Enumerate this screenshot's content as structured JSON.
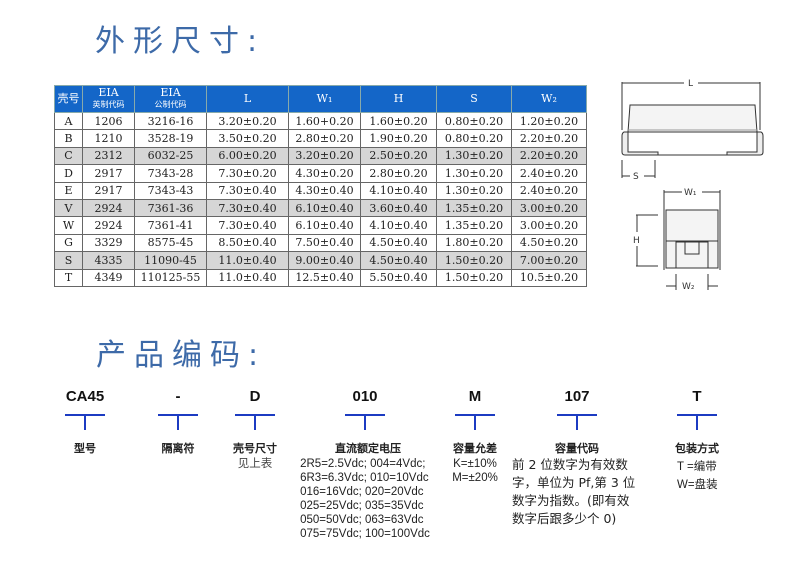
{
  "sections": {
    "dimensions_title": "外形尺寸:",
    "part_number_title": "产品编码:"
  },
  "table": {
    "headers": [
      {
        "main": "壳号",
        "sub": ""
      },
      {
        "main": "EIA",
        "sub": "英制代码"
      },
      {
        "main": "EIA",
        "sub": "公制代码"
      },
      {
        "main": "L",
        "sub": ""
      },
      {
        "main": "W₁",
        "sub": ""
      },
      {
        "main": "H",
        "sub": ""
      },
      {
        "main": "S",
        "sub": ""
      },
      {
        "main": "W₂",
        "sub": ""
      }
    ],
    "rows": [
      {
        "shaded": false,
        "cells": [
          "A",
          "1206",
          "3216-16",
          "3.20±0.20",
          "1.60+0.20",
          "1.60±0.20",
          "0.80±0.20",
          "1.20±0.20"
        ]
      },
      {
        "shaded": false,
        "cells": [
          "B",
          "1210",
          "3528-19",
          "3.50±0.20",
          "2.80±0.20",
          "1.90±0.20",
          "0.80±0.20",
          "2.20±0.20"
        ]
      },
      {
        "shaded": true,
        "cells": [
          "C",
          "2312",
          "6032-25",
          "6.00±0.20",
          "3.20±0.20",
          "2.50±0.20",
          "1.30±0.20",
          "2.20±0.20"
        ]
      },
      {
        "shaded": false,
        "cells": [
          "D",
          "2917",
          "7343-28",
          "7.30±0.20",
          "4.30±0.20",
          "2.80±0.20",
          "1.30±0.20",
          "2.40±0.20"
        ]
      },
      {
        "shaded": false,
        "cells": [
          "E",
          "2917",
          "7343-43",
          "7.30±0.40",
          "4.30±0.40",
          "4.10±0.40",
          "1.30±0.20",
          "2.40±0.20"
        ]
      },
      {
        "shaded": true,
        "cells": [
          "V",
          "2924",
          "7361-36",
          "7.30±0.40",
          "6.10±0.40",
          "3.60±0.40",
          "1.35±0.20",
          "3.00±0.20"
        ]
      },
      {
        "shaded": false,
        "cells": [
          "W",
          "2924",
          "7361-41",
          "7.30±0.40",
          "6.10±0.40",
          "4.10±0.40",
          "1.35±0.20",
          "3.00±0.20"
        ]
      },
      {
        "shaded": false,
        "cells": [
          "G",
          "3329",
          "8575-45",
          "8.50±0.40",
          "7.50±0.40",
          "4.50±0.40",
          "1.80±0.20",
          "4.50±0.20"
        ]
      },
      {
        "shaded": true,
        "cells": [
          "S",
          "4335",
          "11090-45",
          "11.0±0.40",
          "9.00±0.40",
          "4.50±0.40",
          "1.50±0.20",
          "7.00±0.20"
        ]
      },
      {
        "shaded": false,
        "cells": [
          "T",
          "4349",
          "110125-55",
          "11.0±0.40",
          "12.5±0.40",
          "5.50±0.40",
          "1.50±0.20",
          "10.5±0.20"
        ]
      }
    ]
  },
  "diagram": {
    "L": "L",
    "S": "S",
    "W1": "W₁",
    "H": "H",
    "W2": "W₂"
  },
  "part_code": [
    {
      "code": "CA45",
      "label": "型号"
    },
    {
      "code": "-",
      "label": "隔离符"
    },
    {
      "code": "D",
      "label": "壳号尺寸",
      "note": "见上表"
    },
    {
      "code": "010",
      "label": "直流额定电压",
      "lines": [
        "2R5=2.5Vdc; 004=4Vdc;",
        "6R3=6.3Vdc; 010=10Vdc",
        "016=16Vdc; 020=20Vdc",
        "025=25Vdc; 035=35Vdc",
        "050=50Vdc; 063=63Vdc",
        "075=75Vdc; 100=100Vdc"
      ]
    },
    {
      "code": "M",
      "label": "容量允差",
      "lines": [
        "K=±10%",
        "M=±20%"
      ]
    },
    {
      "code": "107",
      "label": "容量代码",
      "lines": [
        "前 2 位数字为有效数",
        "字，单位为 Pf,第 3 位",
        "数字为指数。(即有效",
        "数字后跟多少个 0)"
      ]
    },
    {
      "code": "T",
      "label": "包装方式",
      "lines": [
        "T =编带",
        "W=盘装"
      ]
    }
  ],
  "colors": {
    "title": "#3d6aa8",
    "header": "#1466c8",
    "tbar": "#1c3bc2",
    "shaded_row": "#d6d6d6"
  }
}
